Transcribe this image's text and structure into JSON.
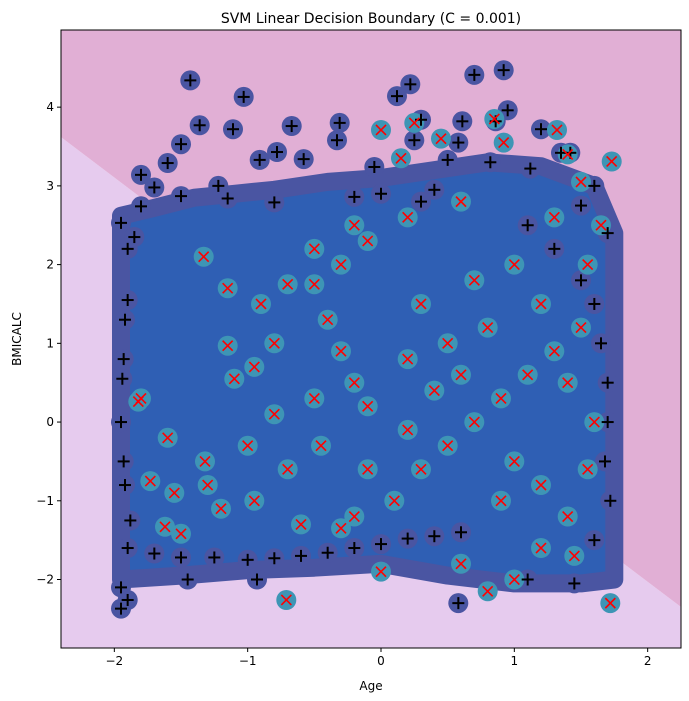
{
  "chart_data": {
    "type": "scatter",
    "title": "SVM Linear Decision Boundary (C = 0.001)",
    "xlabel": "Age",
    "ylabel": "BMICALC",
    "xlim": [
      -2.4,
      2.25
    ],
    "ylim": [
      -2.87,
      4.98
    ],
    "xticks": [
      -2,
      -1,
      0,
      1,
      2
    ],
    "yticks": [
      -2,
      -1,
      0,
      1,
      2,
      3,
      4
    ],
    "grid": false,
    "legend": "none",
    "decision_boundary": {
      "from": [
        -2.4,
        3.62
      ],
      "to": [
        2.25,
        -2.35
      ]
    },
    "region_colors": {
      "upper": "#e1afd5",
      "lower": "#e6cbee"
    },
    "marker_colors": {
      "support_vector_dark": "#4a55a2",
      "support_vector_light": "#3e95b5",
      "class_a": "#000000",
      "class_b": "#ff0000"
    },
    "series": [
      {
        "marker": "plus",
        "points": [
          [
            -1.43,
            4.34
          ],
          [
            -1.03,
            4.13
          ],
          [
            0.12,
            4.14
          ],
          [
            0.22,
            4.29
          ],
          [
            0.7,
            4.41
          ],
          [
            0.92,
            4.47
          ],
          [
            0.95,
            3.96
          ],
          [
            0.86,
            3.82
          ],
          [
            -1.36,
            3.77
          ],
          [
            -0.67,
            3.76
          ],
          [
            -1.11,
            3.72
          ],
          [
            -0.31,
            3.8
          ],
          [
            0.3,
            3.84
          ],
          [
            0.61,
            3.82
          ],
          [
            1.2,
            3.72
          ],
          [
            -0.78,
            3.43
          ],
          [
            -1.5,
            3.53
          ],
          [
            0.25,
            3.58
          ],
          [
            0.58,
            3.55
          ],
          [
            -0.33,
            3.58
          ],
          [
            1.35,
            3.42
          ],
          [
            1.42,
            3.42
          ],
          [
            -1.8,
            3.14
          ],
          [
            -1.6,
            3.29
          ],
          [
            -0.91,
            3.33
          ],
          [
            -0.58,
            3.34
          ],
          [
            -0.05,
            3.24
          ],
          [
            0.5,
            3.33
          ],
          [
            0.82,
            3.3
          ],
          [
            1.12,
            3.22
          ],
          [
            -1.7,
            2.98
          ],
          [
            -1.22,
            3.0
          ],
          [
            0.0,
            2.9
          ],
          [
            0.4,
            2.95
          ],
          [
            1.6,
            3.0
          ],
          [
            -1.95,
            2.53
          ],
          [
            -1.8,
            2.74
          ],
          [
            -1.5,
            2.87
          ],
          [
            -1.15,
            2.84
          ],
          [
            -0.8,
            2.79
          ],
          [
            -0.2,
            2.86
          ],
          [
            0.3,
            2.8
          ],
          [
            1.5,
            2.75
          ],
          [
            1.7,
            2.4
          ],
          [
            -1.9,
            2.2
          ],
          [
            -1.85,
            2.35
          ],
          [
            -1.9,
            1.55
          ],
          [
            -1.92,
            1.3
          ],
          [
            -1.93,
            0.8
          ],
          [
            -1.94,
            0.55
          ],
          [
            -1.95,
            0.0
          ],
          [
            -1.93,
            -0.5
          ],
          [
            -1.92,
            -0.8
          ],
          [
            -1.88,
            -1.25
          ],
          [
            -1.9,
            -1.6
          ],
          [
            -1.7,
            -1.67
          ],
          [
            -1.5,
            -1.72
          ],
          [
            -1.25,
            -1.72
          ],
          [
            -1.0,
            -1.75
          ],
          [
            -0.8,
            -1.73
          ],
          [
            -0.6,
            -1.7
          ],
          [
            -0.4,
            -1.66
          ],
          [
            -0.2,
            -1.6
          ],
          [
            0.0,
            -1.55
          ],
          [
            0.2,
            -1.48
          ],
          [
            0.4,
            -1.45
          ],
          [
            0.6,
            -1.4
          ],
          [
            -1.95,
            -2.1
          ],
          [
            -1.9,
            -2.26
          ],
          [
            -1.95,
            -2.37
          ],
          [
            -1.45,
            -2.0
          ],
          [
            -0.93,
            -2.0
          ],
          [
            0.58,
            -2.3
          ],
          [
            1.1,
            -2.0
          ],
          [
            1.45,
            -2.05
          ],
          [
            1.6,
            1.5
          ],
          [
            1.65,
            1.0
          ],
          [
            1.7,
            0.5
          ],
          [
            1.7,
            0.0
          ],
          [
            1.68,
            -0.5
          ],
          [
            1.72,
            -1.0
          ],
          [
            1.6,
            -1.5
          ],
          [
            1.5,
            1.8
          ],
          [
            1.3,
            2.2
          ],
          [
            1.1,
            2.5
          ]
        ]
      },
      {
        "marker": "x",
        "points": [
          [
            -1.73,
            -0.75
          ],
          [
            -1.82,
            0.26
          ],
          [
            -1.8,
            0.3
          ],
          [
            -1.6,
            -0.2
          ],
          [
            -1.55,
            -0.9
          ],
          [
            -1.62,
            -1.33
          ],
          [
            -1.5,
            -1.42
          ],
          [
            -1.32,
            -0.5
          ],
          [
            -1.15,
            0.97
          ],
          [
            -1.1,
            0.55
          ],
          [
            -0.95,
            0.7
          ],
          [
            -0.8,
            1.0
          ],
          [
            -1.33,
            2.1
          ],
          [
            -1.15,
            1.7
          ],
          [
            -0.9,
            1.5
          ],
          [
            -0.7,
            1.75
          ],
          [
            -0.5,
            1.75
          ],
          [
            -0.3,
            2.0
          ],
          [
            -0.1,
            2.3
          ],
          [
            0.0,
            3.71
          ],
          [
            0.15,
            3.35
          ],
          [
            0.25,
            3.8
          ],
          [
            0.45,
            3.6
          ],
          [
            0.85,
            3.85
          ],
          [
            0.92,
            3.55
          ],
          [
            1.32,
            3.71
          ],
          [
            1.4,
            3.4
          ],
          [
            1.73,
            3.31
          ],
          [
            1.5,
            3.05
          ],
          [
            1.3,
            2.6
          ],
          [
            0.6,
            2.8
          ],
          [
            0.2,
            2.6
          ],
          [
            -0.2,
            2.5
          ],
          [
            -0.5,
            2.2
          ],
          [
            -0.4,
            1.3
          ],
          [
            -0.3,
            0.9
          ],
          [
            -0.2,
            0.5
          ],
          [
            -0.1,
            0.2
          ],
          [
            -0.45,
            -0.3
          ],
          [
            -0.7,
            -0.6
          ],
          [
            -0.95,
            -1.0
          ],
          [
            -1.2,
            -1.1
          ],
          [
            -0.6,
            -1.3
          ],
          [
            -0.2,
            -1.2
          ],
          [
            0.1,
            -1.0
          ],
          [
            0.3,
            -0.6
          ],
          [
            0.5,
            -0.3
          ],
          [
            0.7,
            0.0
          ],
          [
            0.9,
            0.3
          ],
          [
            1.1,
            0.6
          ],
          [
            1.3,
            0.9
          ],
          [
            1.5,
            1.2
          ],
          [
            0.5,
            1.0
          ],
          [
            0.3,
            1.5
          ],
          [
            0.7,
            1.8
          ],
          [
            1.0,
            2.0
          ],
          [
            1.2,
            1.5
          ],
          [
            1.4,
            0.5
          ],
          [
            1.6,
            0.0
          ],
          [
            1.55,
            -0.6
          ],
          [
            1.4,
            -1.2
          ],
          [
            1.2,
            -1.6
          ],
          [
            1.0,
            -2.0
          ],
          [
            0.8,
            -2.15
          ],
          [
            1.72,
            -2.3
          ],
          [
            0.6,
            -1.8
          ],
          [
            0.0,
            -1.9
          ],
          [
            -0.71,
            -2.26
          ],
          [
            -0.3,
            -1.35
          ],
          [
            0.2,
            -0.1
          ],
          [
            0.4,
            0.4
          ],
          [
            0.8,
            1.2
          ],
          [
            1.0,
            -0.5
          ],
          [
            1.2,
            -0.8
          ],
          [
            0.6,
            0.6
          ],
          [
            0.2,
            0.8
          ],
          [
            -0.1,
            -0.6
          ],
          [
            -0.5,
            0.3
          ],
          [
            -0.8,
            0.1
          ],
          [
            -1.0,
            -0.3
          ],
          [
            -1.3,
            -0.8
          ],
          [
            1.65,
            2.5
          ],
          [
            1.55,
            2.0
          ],
          [
            1.45,
            -1.7
          ],
          [
            0.9,
            -1.0
          ]
        ]
      }
    ]
  }
}
